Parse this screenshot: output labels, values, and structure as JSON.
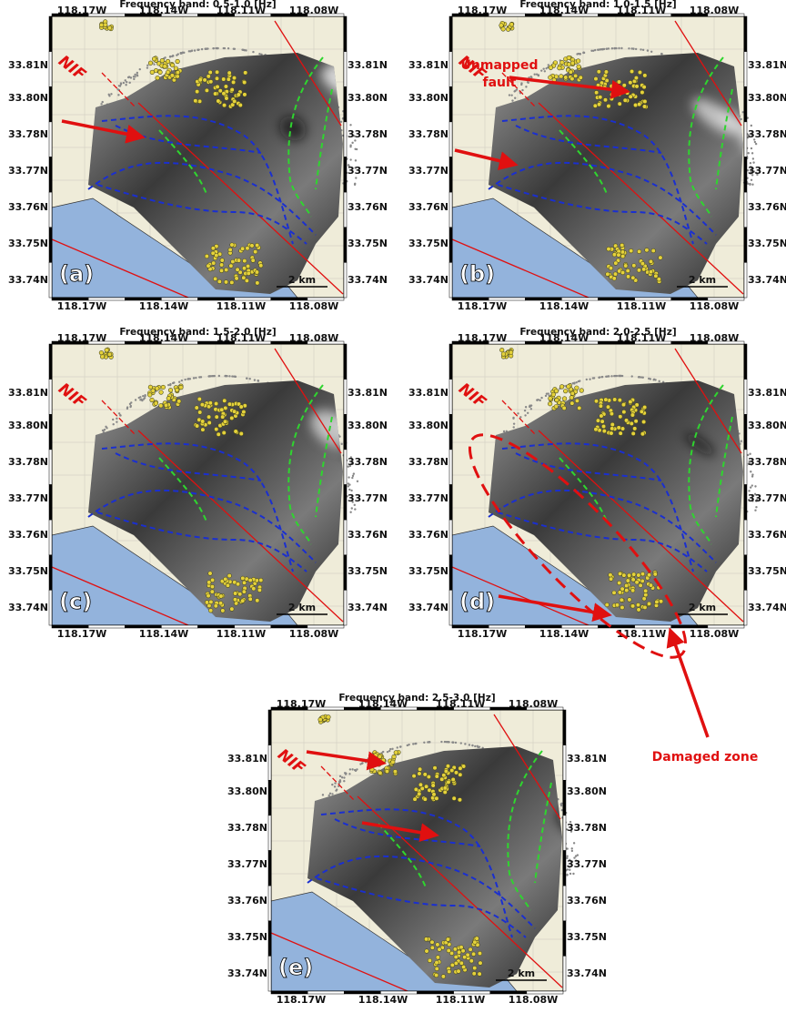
{
  "lon_ticks": [
    "118.17W",
    "118.14W",
    "118.11W",
    "118.08W"
  ],
  "lat_ticks": [
    "33.81N",
    "33.80N",
    "33.78N",
    "33.77N",
    "33.76N",
    "33.75N",
    "33.74N"
  ],
  "panels": [
    {
      "title": "Frequency band: 0.5-1.0 [Hz]",
      "label": "(a)",
      "fault_label": "NIF",
      "scale_label": "2 km"
    },
    {
      "title": "Frequency band: 1.0-1.5 [Hz]",
      "label": "(b)",
      "fault_label": "NIF",
      "scale_label": "2 km",
      "annotation": [
        "Unmapped",
        "fault"
      ]
    },
    {
      "title": "Frequency band: 1.5-2.0 [Hz]",
      "label": "(c)",
      "fault_label": "NIF",
      "scale_label": "2 km"
    },
    {
      "title": "Frequency band: 2.0-2.5 [Hz]",
      "label": "(d)",
      "fault_label": "NIF",
      "scale_label": "2 km"
    },
    {
      "title": "Frequency band: 2.5-3.0 [Hz]",
      "label": "(e)",
      "fault_label": "NIF",
      "scale_label": "2 km"
    }
  ],
  "damaged_zone_label": "Damaged zone"
}
